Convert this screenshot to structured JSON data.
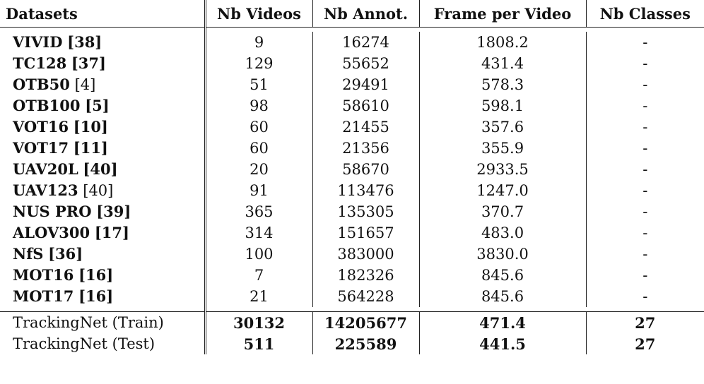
{
  "headers": [
    "Datasets",
    "Nb Videos",
    "Nb Annot.",
    "Frame per Video",
    "Nb Classes"
  ],
  "rows": [
    {
      "name": "VIVID",
      "ref": "[38]",
      "videos": "9",
      "annot": "16274",
      "fpv": "1808.2",
      "classes": "-"
    },
    {
      "name": "TC128",
      "ref": "[37]",
      "videos": "129",
      "annot": "55652",
      "fpv": "431.4",
      "classes": "-"
    },
    {
      "name": "OTB50",
      "ref": "[4]",
      "videos": "51",
      "annot": "29491",
      "fpv": "578.3",
      "classes": "-"
    },
    {
      "name": "OTB100",
      "ref": "[5]",
      "videos": "98",
      "annot": "58610",
      "fpv": "598.1",
      "classes": "-"
    },
    {
      "name": "VOT16",
      "ref": "[10]",
      "videos": "60",
      "annot": "21455",
      "fpv": "357.6",
      "classes": "-"
    },
    {
      "name": "VOT17",
      "ref": "[11]",
      "videos": "60",
      "annot": "21356",
      "fpv": "355.9",
      "classes": "-"
    },
    {
      "name": "UAV20L",
      "ref": "[40]",
      "videos": "20",
      "annot": "58670",
      "fpv": "2933.5",
      "classes": "-"
    },
    {
      "name": "UAV123",
      "ref": "[40]",
      "videos": "91",
      "annot": "113476",
      "fpv": "1247.0",
      "classes": "-"
    },
    {
      "name": "NUS PRO",
      "ref": "[39]",
      "videos": "365",
      "annot": "135305",
      "fpv": "370.7",
      "classes": "-"
    },
    {
      "name": "ALOV300",
      "ref": "[17]",
      "videos": "314",
      "annot": "151657",
      "fpv": "483.0",
      "classes": "-"
    },
    {
      "name": "NfS",
      "ref": "[36]",
      "videos": "100",
      "annot": "383000",
      "fpv": "3830.0",
      "classes": "-"
    },
    {
      "name": "MOT16",
      "ref": "[16]",
      "videos": "7",
      "annot": "182326",
      "fpv": "845.6",
      "classes": "-"
    },
    {
      "name": "MOT17",
      "ref": "[16]",
      "videos": "21",
      "annot": "564228",
      "fpv": "845.6",
      "classes": "-"
    }
  ],
  "ours": [
    {
      "name": "TrackingNet (Train)",
      "videos": "30132",
      "annot": "14205677",
      "fpv": "471.4",
      "classes": "27"
    },
    {
      "name": "TrackingNet (Test)",
      "videos": "511",
      "annot": "225589",
      "fpv": "441.5",
      "classes": "27"
    }
  ]
}
